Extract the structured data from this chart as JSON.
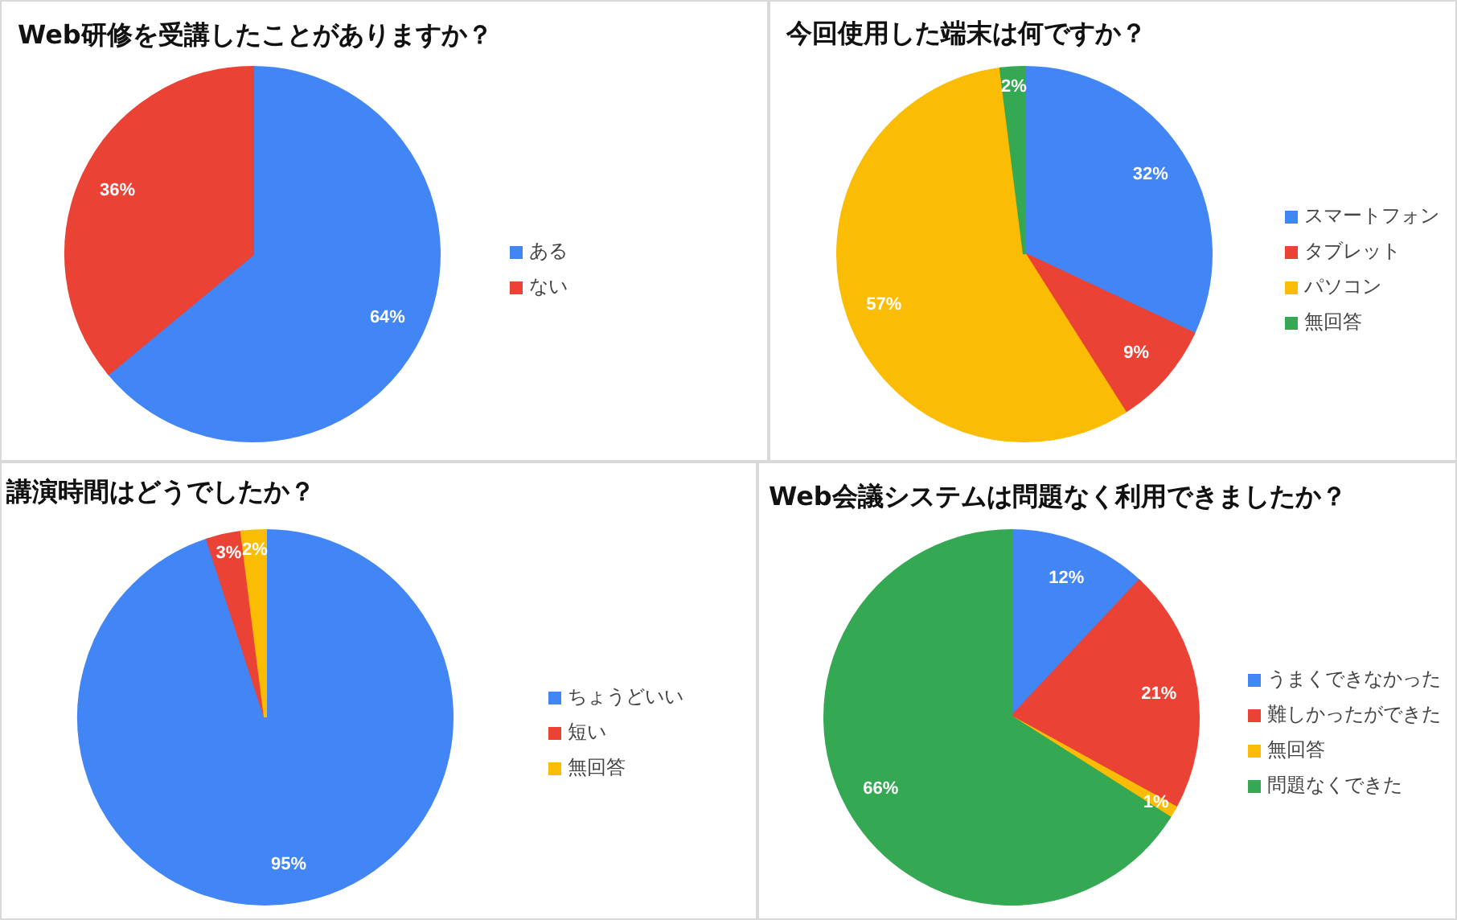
{
  "chart_data": [
    {
      "type": "pie",
      "title": "Web研修を受講したことがありますか？",
      "categories": [
        "ある",
        "ない"
      ],
      "values": [
        64,
        36
      ],
      "colors": [
        "#4285f4",
        "#ea4335"
      ],
      "value_labels": [
        "64%",
        "36%"
      ],
      "legend": "right"
    },
    {
      "type": "pie",
      "title": "今回使用した端末は何ですか？",
      "categories": [
        "スマートフォン",
        "タブレット",
        "パソコン",
        "無回答"
      ],
      "values": [
        32,
        9,
        57,
        2
      ],
      "colors": [
        "#4285f4",
        "#ea4335",
        "#fbbc04",
        "#34a853"
      ],
      "value_labels": [
        "32%",
        "9%",
        "57%",
        "2%"
      ],
      "legend": "right"
    },
    {
      "type": "pie",
      "title": "講演時間はどうでしたか？",
      "categories": [
        "ちょうどいい",
        "短い",
        "無回答"
      ],
      "values": [
        95,
        3,
        2
      ],
      "colors": [
        "#4285f4",
        "#ea4335",
        "#fbbc04"
      ],
      "value_labels": [
        "95%",
        "3%",
        "2%"
      ],
      "legend": "right"
    },
    {
      "type": "pie",
      "title": "Web会議システムは問題なく利用できましたか？",
      "categories": [
        "うまくできなかった",
        "難しかったができた",
        "無回答",
        "問題なくできた"
      ],
      "values": [
        12,
        21,
        1,
        66
      ],
      "colors": [
        "#4285f4",
        "#ea4335",
        "#fbbc04",
        "#34a853"
      ],
      "value_labels": [
        "12%",
        "21%",
        "1%",
        "66%"
      ],
      "legend": "right"
    }
  ]
}
